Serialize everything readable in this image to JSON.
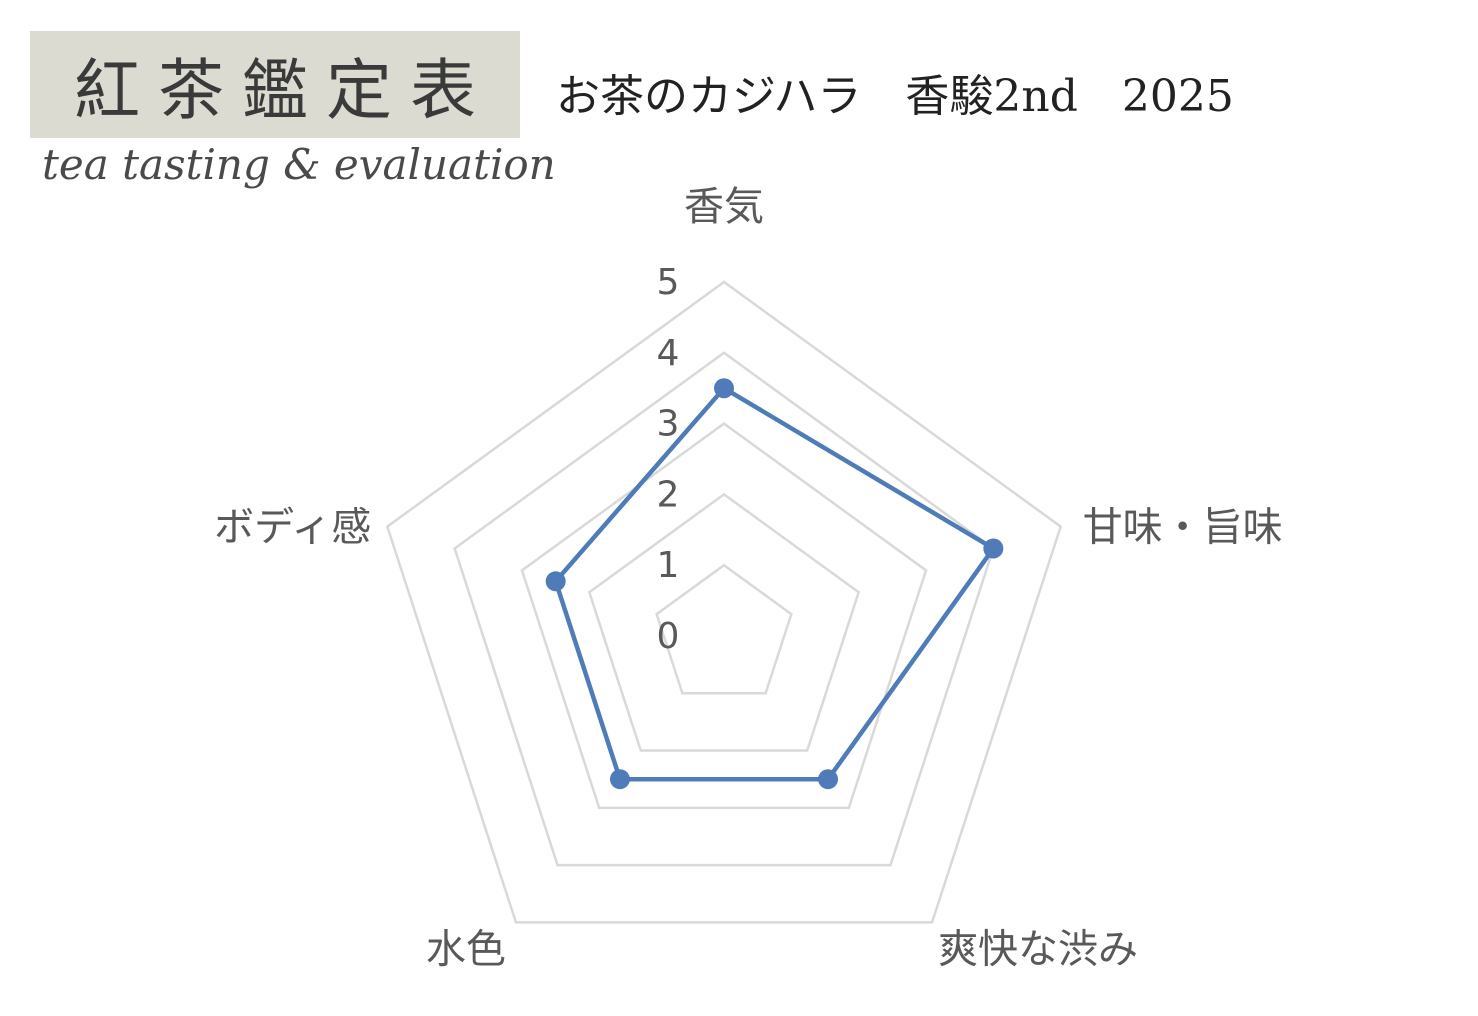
{
  "logo": {
    "title": "紅茶鑑定表",
    "subtitle": "tea tasting & evaluation"
  },
  "header": {
    "title": "お茶のカジハラ　香駿2nd　2025"
  },
  "chart_data": {
    "type": "radar",
    "categories": [
      "香気",
      "甘味・旨味",
      "爽快な渋み",
      "水色",
      "ボディ感"
    ],
    "series": [
      {
        "values": [
          3.5,
          4.0,
          2.5,
          2.5,
          2.5
        ],
        "color": "#4f7cb8"
      }
    ],
    "rlim": [
      0,
      5
    ],
    "ticks": [
      "0",
      "1",
      "2",
      "3",
      "4",
      "5"
    ],
    "grid": true,
    "grid_color": "#d9d9d9",
    "legend": "none"
  }
}
